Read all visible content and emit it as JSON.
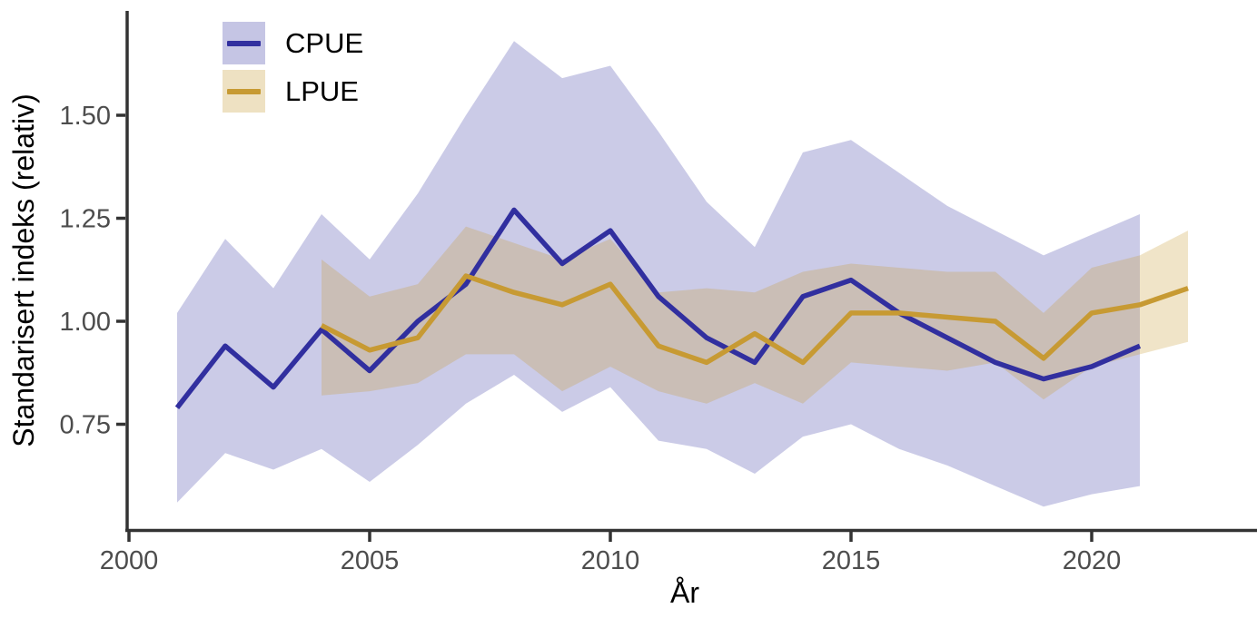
{
  "chart_data": {
    "type": "line",
    "title": "",
    "xlabel": "År",
    "ylabel": "Standarisert indeks (relativ)",
    "grid": false,
    "legend_position": "top-left-inside",
    "xlim": [
      1999.94,
      2023.43
    ],
    "ylim": [
      0.5,
      1.75
    ],
    "x_ticks": [
      2000,
      2005,
      2010,
      2015,
      2020
    ],
    "x_tick_labels": [
      "2000",
      "2005",
      "2010",
      "2015",
      "2020"
    ],
    "y_ticks": [
      0.75,
      1.0,
      1.25,
      1.5
    ],
    "y_tick_labels": [
      "0.75",
      "1.00",
      "1.25",
      "1.50"
    ],
    "series": [
      {
        "name": "CPUE",
        "line_color": "#312f9f",
        "fill_color": "#312f9f",
        "fill_opacity": 0.25,
        "years": [
          2001,
          2002,
          2003,
          2004,
          2005,
          2006,
          2007,
          2008,
          2009,
          2010,
          2011,
          2012,
          2013,
          2014,
          2015,
          2016,
          2017,
          2018,
          2019,
          2020,
          2021
        ],
        "values": [
          0.79,
          0.94,
          0.84,
          0.98,
          0.88,
          1.0,
          1.09,
          1.27,
          1.14,
          1.22,
          1.06,
          0.96,
          0.9,
          1.06,
          1.1,
          1.02,
          0.96,
          0.9,
          0.86,
          0.89,
          0.94
        ],
        "upper": [
          1.02,
          1.2,
          1.08,
          1.26,
          1.15,
          1.31,
          1.5,
          1.68,
          1.59,
          1.62,
          1.46,
          1.29,
          1.18,
          1.41,
          1.44,
          1.36,
          1.28,
          1.22,
          1.16,
          1.21,
          1.26
        ],
        "lower": [
          0.56,
          0.68,
          0.64,
          0.69,
          0.61,
          0.7,
          0.8,
          0.87,
          0.78,
          0.84,
          0.71,
          0.69,
          0.63,
          0.72,
          0.75,
          0.69,
          0.65,
          0.6,
          0.55,
          0.58,
          0.6
        ]
      },
      {
        "name": "LPUE",
        "line_color": "#c79a33",
        "fill_color": "#c79a33",
        "fill_opacity": 0.27,
        "years": [
          2004,
          2005,
          2006,
          2007,
          2008,
          2009,
          2010,
          2011,
          2012,
          2013,
          2014,
          2015,
          2016,
          2017,
          2018,
          2019,
          2020,
          2021,
          2022
        ],
        "values": [
          0.99,
          0.93,
          0.96,
          1.11,
          1.07,
          1.04,
          1.09,
          0.94,
          0.9,
          0.97,
          0.9,
          1.02,
          1.02,
          1.01,
          1.0,
          0.91,
          1.02,
          1.04,
          1.08
        ],
        "upper": [
          1.15,
          1.06,
          1.09,
          1.23,
          1.19,
          1.15,
          1.2,
          1.07,
          1.08,
          1.07,
          1.12,
          1.14,
          1.13,
          1.12,
          1.12,
          1.02,
          1.13,
          1.16,
          1.22
        ],
        "lower": [
          0.82,
          0.83,
          0.85,
          0.92,
          0.92,
          0.83,
          0.89,
          0.83,
          0.8,
          0.85,
          0.8,
          0.9,
          0.89,
          0.88,
          0.9,
          0.81,
          0.89,
          0.92,
          0.95
        ]
      }
    ]
  },
  "legend": {
    "items": [
      {
        "label": "CPUE"
      },
      {
        "label": "LPUE"
      }
    ]
  },
  "colors": {
    "axis": "#333333",
    "tick_label": "#4d4d4d",
    "text": "#000000",
    "background": "#ffffff"
  }
}
